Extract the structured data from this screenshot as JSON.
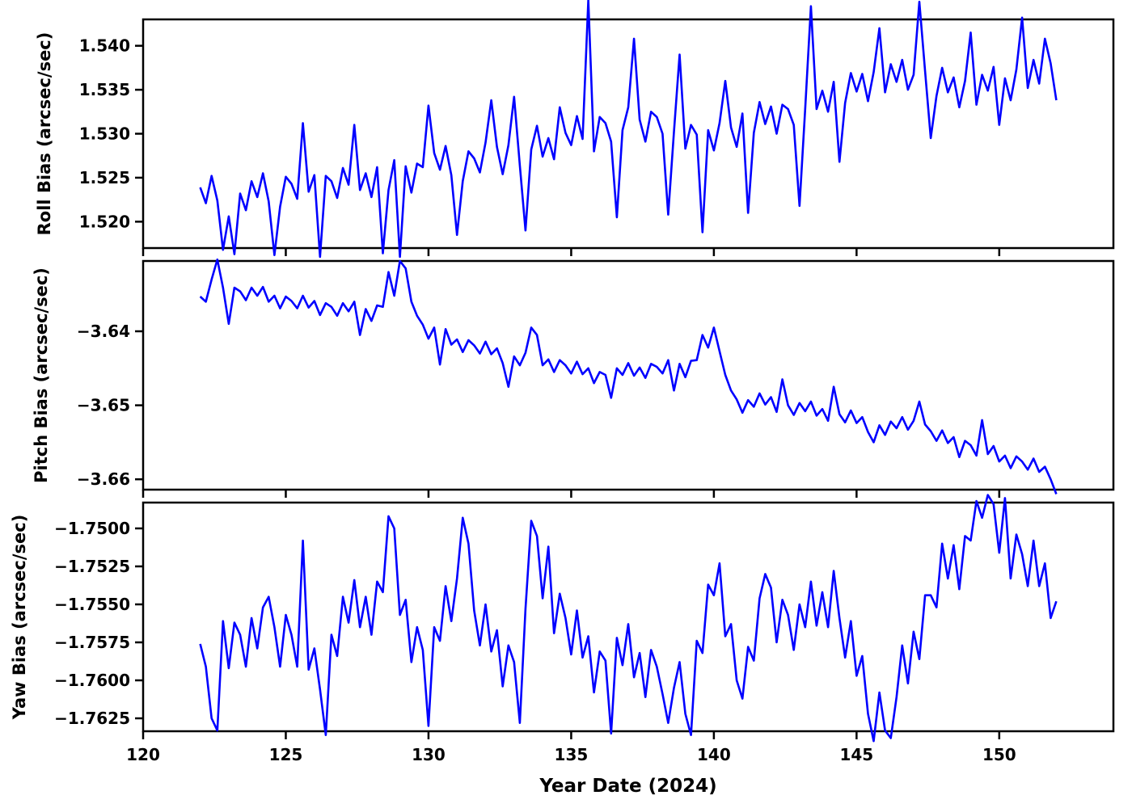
{
  "figure": {
    "background": "#ffffff",
    "axis_color": "#000000"
  },
  "chart_data": {
    "type": "line",
    "title": "",
    "xlabel": "Year Date (2024)",
    "x_start": 122.0,
    "x_step": 0.2,
    "xlim": [
      120,
      154
    ],
    "xticks": [
      120,
      125,
      130,
      135,
      140,
      145,
      150
    ],
    "xtick_labels": [
      "120",
      "125",
      "130",
      "135",
      "140",
      "145",
      "150"
    ],
    "line_color": "#0000ff",
    "grid": false,
    "legend": null,
    "panels": [
      {
        "name": "roll-bias",
        "ylabel": "Roll Bias (arcsec/sec)",
        "ylim": [
          1.517,
          1.543
        ],
        "yticks": [
          1.52,
          1.525,
          1.53,
          1.535,
          1.54
        ],
        "ytick_labels": [
          "1.520",
          "1.525",
          "1.530",
          "1.535",
          "1.540"
        ],
        "values": [
          1.5239,
          1.5221,
          1.5252,
          1.5224,
          1.5168,
          1.5206,
          1.5163,
          1.5232,
          1.5213,
          1.5246,
          1.5228,
          1.5255,
          1.5223,
          1.5162,
          1.5217,
          1.5251,
          1.5243,
          1.5226,
          1.5312,
          1.5234,
          1.5253,
          1.516,
          1.5252,
          1.5246,
          1.5227,
          1.5261,
          1.5242,
          1.531,
          1.5236,
          1.5255,
          1.5228,
          1.5262,
          1.5164,
          1.5236,
          1.527,
          1.516,
          1.5263,
          1.5233,
          1.5266,
          1.5262,
          1.5332,
          1.5278,
          1.5259,
          1.5286,
          1.5253,
          1.5185,
          1.5246,
          1.528,
          1.5272,
          1.5256,
          1.529,
          1.5338,
          1.5285,
          1.5254,
          1.5287,
          1.5342,
          1.5264,
          1.519,
          1.5282,
          1.5309,
          1.5274,
          1.5295,
          1.5271,
          1.533,
          1.5301,
          1.5287,
          1.532,
          1.5294,
          1.5452,
          1.528,
          1.5319,
          1.5312,
          1.5291,
          1.5205,
          1.5304,
          1.533,
          1.5408,
          1.5316,
          1.5291,
          1.5325,
          1.5319,
          1.53,
          1.5208,
          1.5302,
          1.539,
          1.5283,
          1.531,
          1.5299,
          1.5188,
          1.5304,
          1.5281,
          1.5312,
          1.536,
          1.5307,
          1.5285,
          1.5323,
          1.521,
          1.5301,
          1.5336,
          1.5311,
          1.5331,
          1.53,
          1.5333,
          1.5328,
          1.531,
          1.5218,
          1.5328,
          1.5445,
          1.5328,
          1.5349,
          1.5325,
          1.5359,
          1.5268,
          1.5335,
          1.5369,
          1.5348,
          1.5368,
          1.5337,
          1.537,
          1.542,
          1.5347,
          1.5379,
          1.5359,
          1.5384,
          1.535,
          1.5367,
          1.545,
          1.5371,
          1.5295,
          1.5343,
          1.5375,
          1.5347,
          1.5364,
          1.533,
          1.536,
          1.5415,
          1.5333,
          1.5367,
          1.5349,
          1.5376,
          1.531,
          1.5363,
          1.5338,
          1.5373,
          1.5432,
          1.5352,
          1.5384,
          1.5357,
          1.5408,
          1.538,
          1.5338
        ]
      },
      {
        "name": "pitch-bias",
        "ylabel": "Pitch Bias (arcsec/sec)",
        "ylim": [
          -3.6614,
          -3.6305
        ],
        "yticks": [
          -3.64,
          -3.65,
          -3.66
        ],
        "ytick_labels": [
          "−3.64",
          "−3.65",
          "−3.66"
        ],
        "values": [
          -3.6353,
          -3.636,
          -3.633,
          -3.6303,
          -3.6341,
          -3.639,
          -3.6341,
          -3.6346,
          -3.6358,
          -3.6341,
          -3.6352,
          -3.634,
          -3.636,
          -3.6352,
          -3.6369,
          -3.6353,
          -3.6359,
          -3.6369,
          -3.6352,
          -3.6368,
          -3.6359,
          -3.6378,
          -3.6362,
          -3.6367,
          -3.6379,
          -3.6362,
          -3.6373,
          -3.636,
          -3.6405,
          -3.637,
          -3.6386,
          -3.6365,
          -3.6367,
          -3.632,
          -3.6352,
          -3.6305,
          -3.6315,
          -3.636,
          -3.6379,
          -3.6391,
          -3.641,
          -3.6395,
          -3.6445,
          -3.6397,
          -3.6418,
          -3.6411,
          -3.6428,
          -3.6412,
          -3.6419,
          -3.643,
          -3.6414,
          -3.6431,
          -3.6423,
          -3.6443,
          -3.6475,
          -3.6434,
          -3.6446,
          -3.6429,
          -3.6395,
          -3.6405,
          -3.6446,
          -3.6438,
          -3.6455,
          -3.6439,
          -3.6446,
          -3.6457,
          -3.6441,
          -3.6458,
          -3.645,
          -3.647,
          -3.6455,
          -3.6459,
          -3.649,
          -3.645,
          -3.6459,
          -3.6443,
          -3.646,
          -3.6449,
          -3.6463,
          -3.6444,
          -3.6448,
          -3.6457,
          -3.6439,
          -3.648,
          -3.6444,
          -3.6462,
          -3.644,
          -3.6439,
          -3.6405,
          -3.6422,
          -3.6395,
          -3.6427,
          -3.6459,
          -3.648,
          -3.6492,
          -3.651,
          -3.6493,
          -3.6502,
          -3.6484,
          -3.6499,
          -3.6489,
          -3.6509,
          -3.6465,
          -3.65,
          -3.6513,
          -3.6497,
          -3.6508,
          -3.6495,
          -3.6514,
          -3.6505,
          -3.6521,
          -3.6475,
          -3.6512,
          -3.6523,
          -3.6507,
          -3.6524,
          -3.6516,
          -3.6536,
          -3.655,
          -3.6527,
          -3.654,
          -3.6522,
          -3.6531,
          -3.6516,
          -3.6533,
          -3.6521,
          -3.6495,
          -3.6526,
          -3.6535,
          -3.6548,
          -3.6534,
          -3.6551,
          -3.6543,
          -3.657,
          -3.6548,
          -3.6554,
          -3.6568,
          -3.652,
          -3.6566,
          -3.6555,
          -3.6576,
          -3.6568,
          -3.6585,
          -3.6569,
          -3.6576,
          -3.6587,
          -3.6572,
          -3.659,
          -3.6583,
          -3.66,
          -3.662
        ]
      },
      {
        "name": "yaw-bias",
        "ylabel": "Yaw Bias (arcsec/sec)",
        "ylim": [
          -1.76335,
          -1.7483
        ],
        "yticks": [
          -1.75,
          -1.7525,
          -1.755,
          -1.7575,
          -1.76,
          -1.7625
        ],
        "ytick_labels": [
          "−1.7500",
          "−1.7525",
          "−1.7550",
          "−1.7575",
          "−1.7600",
          "−1.7625"
        ],
        "values": [
          -1.7576,
          -1.7591,
          -1.7625,
          -1.7633,
          -1.7561,
          -1.7592,
          -1.7562,
          -1.757,
          -1.7591,
          -1.7559,
          -1.7579,
          -1.7552,
          -1.7545,
          -1.7565,
          -1.7591,
          -1.7557,
          -1.757,
          -1.7591,
          -1.7508,
          -1.7593,
          -1.7579,
          -1.7606,
          -1.7636,
          -1.757,
          -1.7584,
          -1.7545,
          -1.7562,
          -1.7534,
          -1.7565,
          -1.7545,
          -1.757,
          -1.7535,
          -1.7542,
          -1.7492,
          -1.75,
          -1.7557,
          -1.7547,
          -1.7588,
          -1.7565,
          -1.758,
          -1.763,
          -1.7565,
          -1.7574,
          -1.7538,
          -1.7561,
          -1.7533,
          -1.7493,
          -1.751,
          -1.7554,
          -1.7577,
          -1.755,
          -1.7581,
          -1.7567,
          -1.7604,
          -1.7577,
          -1.7588,
          -1.7628,
          -1.7553,
          -1.7495,
          -1.7505,
          -1.7546,
          -1.7512,
          -1.7569,
          -1.7543,
          -1.7559,
          -1.7583,
          -1.7554,
          -1.7585,
          -1.7571,
          -1.7608,
          -1.7581,
          -1.7587,
          -1.7635,
          -1.7572,
          -1.759,
          -1.7563,
          -1.7598,
          -1.7582,
          -1.7611,
          -1.758,
          -1.7591,
          -1.7609,
          -1.7628,
          -1.7605,
          -1.7588,
          -1.7622,
          -1.7636,
          -1.7574,
          -1.7582,
          -1.7537,
          -1.7544,
          -1.7523,
          -1.7571,
          -1.7563,
          -1.76,
          -1.7612,
          -1.7578,
          -1.7587,
          -1.7546,
          -1.753,
          -1.7539,
          -1.7575,
          -1.7547,
          -1.7557,
          -1.758,
          -1.755,
          -1.7565,
          -1.7535,
          -1.7564,
          -1.7542,
          -1.7565,
          -1.7528,
          -1.7559,
          -1.7585,
          -1.7561,
          -1.7597,
          -1.7584,
          -1.7622,
          -1.764,
          -1.7608,
          -1.7633,
          -1.7638,
          -1.7611,
          -1.7577,
          -1.7602,
          -1.7568,
          -1.7586,
          -1.7544,
          -1.7544,
          -1.7552,
          -1.751,
          -1.7533,
          -1.7511,
          -1.754,
          -1.7505,
          -1.7508,
          -1.7482,
          -1.7493,
          -1.7478,
          -1.7484,
          -1.7516,
          -1.748,
          -1.7533,
          -1.7504,
          -1.7517,
          -1.7538,
          -1.7508,
          -1.7538,
          -1.7523,
          -1.7559,
          -1.7548
        ]
      }
    ]
  }
}
